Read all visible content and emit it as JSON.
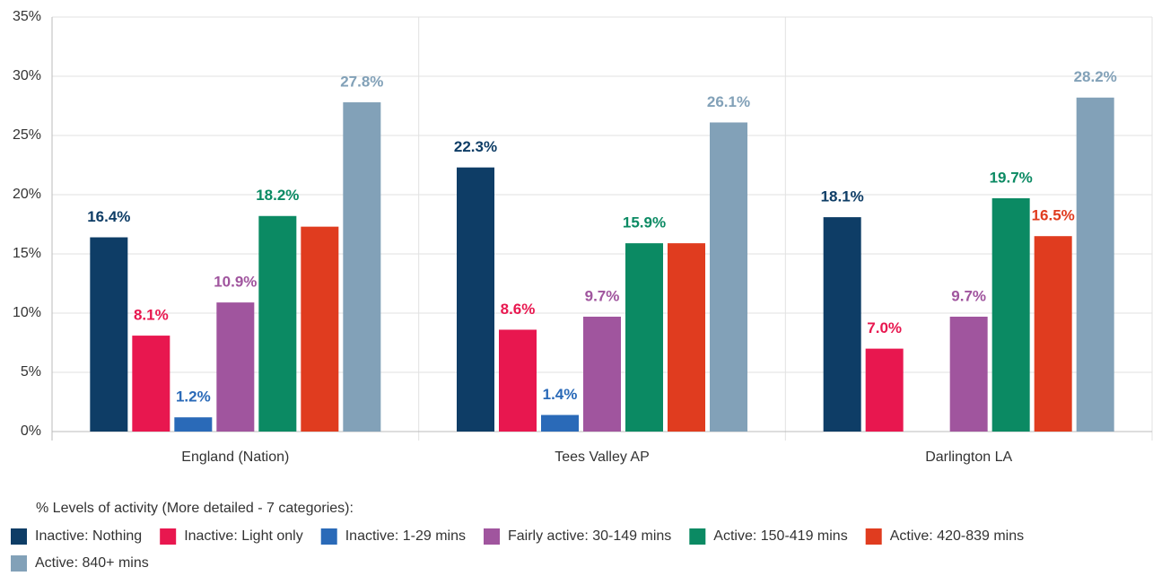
{
  "chart_data": {
    "type": "bar",
    "categories": [
      "England (Nation)",
      "Tees Valley AP",
      "Darlington LA"
    ],
    "legend_title": "% Levels of activity (More detailed - 7 categories):",
    "ylim": [
      0,
      35
    ],
    "yticks": [
      {
        "value": 0,
        "label": "0%"
      },
      {
        "value": 5,
        "label": "5%"
      },
      {
        "value": 10,
        "label": "10%"
      },
      {
        "value": 15,
        "label": "15%"
      },
      {
        "value": 20,
        "label": "20%"
      },
      {
        "value": 25,
        "label": "25%"
      },
      {
        "value": 30,
        "label": "30%"
      },
      {
        "value": 35,
        "label": "35%"
      }
    ],
    "grid": true,
    "series": [
      {
        "name": "Inactive: Nothing",
        "color": "#0e3d66",
        "values": [
          16.4,
          22.3,
          18.1
        ],
        "value_labels": [
          "16.4%",
          "22.3%",
          "18.1%"
        ]
      },
      {
        "name": "Inactive: Light only",
        "color": "#e8174f",
        "values": [
          8.1,
          8.6,
          7.0
        ],
        "value_labels": [
          "8.1%",
          "8.6%",
          "7.0%"
        ]
      },
      {
        "name": "Inactive: 1-29 mins",
        "color": "#2a6ab8",
        "values": [
          1.2,
          1.4,
          null
        ],
        "value_labels": [
          "1.2%",
          "1.4%",
          null
        ]
      },
      {
        "name": "Fairly active: 30-149 mins",
        "color": "#a0559e",
        "values": [
          10.9,
          9.7,
          9.7
        ],
        "value_labels": [
          "10.9%",
          "9.7%",
          "9.7%"
        ]
      },
      {
        "name": "Active: 150-419 mins",
        "color": "#0b8a63",
        "values": [
          18.2,
          15.9,
          19.7
        ],
        "value_labels": [
          "18.2%",
          "15.9%",
          "19.7%"
        ]
      },
      {
        "name": "Active: 420-839 mins",
        "color": "#e03c1f",
        "values": [
          17.3,
          15.9,
          16.5
        ],
        "value_labels": [
          null,
          null,
          "16.5%"
        ]
      },
      {
        "name": "Active: 840+ mins",
        "color": "#82a1b8",
        "values": [
          27.8,
          26.1,
          28.2
        ],
        "value_labels": [
          "27.8%",
          "26.1%",
          "28.2%"
        ]
      }
    ]
  }
}
